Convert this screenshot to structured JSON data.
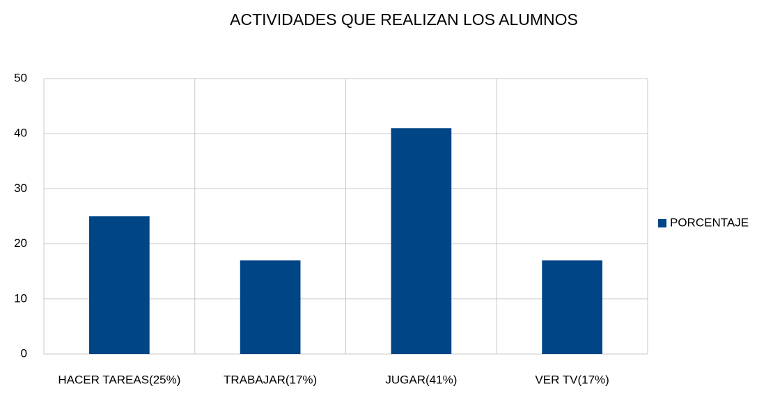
{
  "chart_data": {
    "type": "bar",
    "title": "ACTIVIDADES QUE REALIZAN LOS ALUMNOS",
    "categories": [
      "HACER TAREAS(25%)",
      "TRABAJAR(17%)",
      "JUGAR(41%)",
      "VER TV(17%)"
    ],
    "series": [
      {
        "name": "PORCENTAJE",
        "color": "#004586",
        "values": [
          25,
          17,
          41,
          17
        ]
      }
    ],
    "ylim": [
      0,
      50
    ],
    "yticks": [
      0,
      10,
      20,
      30,
      40,
      50
    ],
    "grid": true,
    "legend": "right"
  }
}
